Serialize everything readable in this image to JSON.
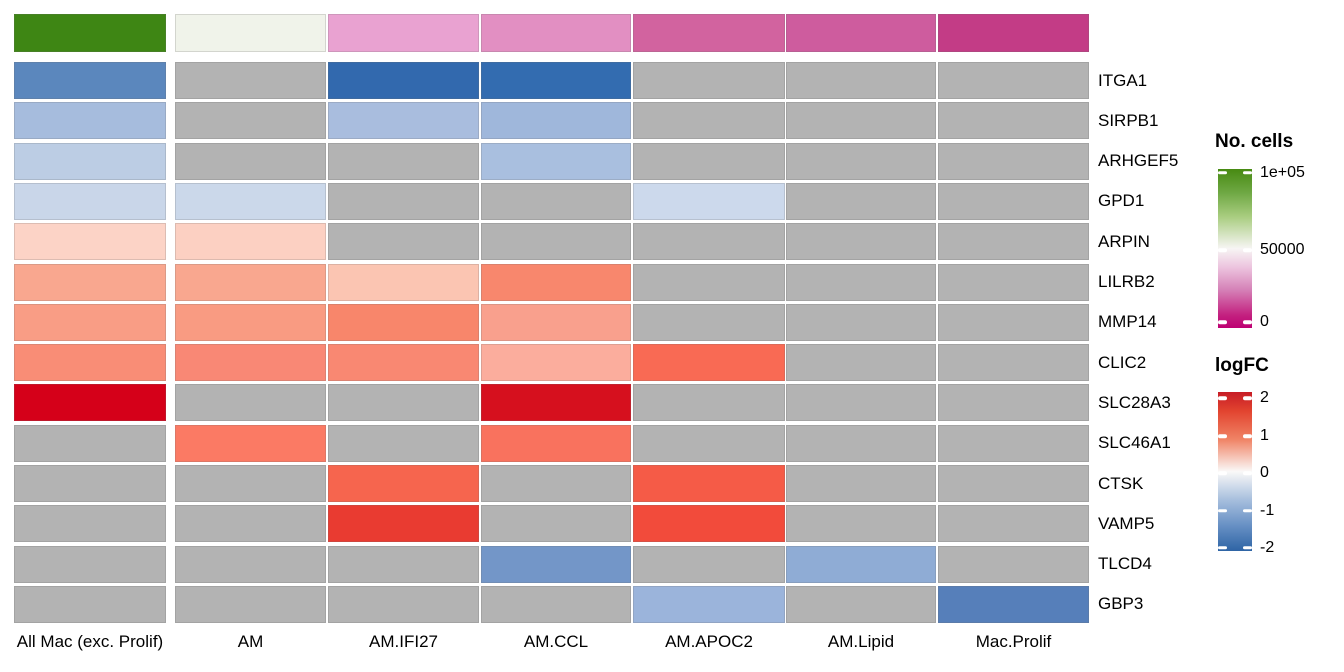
{
  "figure": {
    "background": "#ffffff"
  },
  "chart_data": {
    "type": "heatmap",
    "title": "",
    "columns": [
      "All Mac (exc. Prolif)",
      "AM",
      "AM.IFI27",
      "AM.CCL",
      "AM.APOC2",
      "AM.Lipid",
      "Mac.Prolif"
    ],
    "rows": [
      "ITGA1",
      "SIRPB1",
      "ARHGEF5",
      "GPD1",
      "ARPIN",
      "LILRB2",
      "MMP14",
      "CLIC2",
      "SLC28A3",
      "SLC46A1",
      "CTSK",
      "VAMP5",
      "TLCD4",
      "GBP3"
    ],
    "na_color": "#B3B3B3",
    "annotation": {
      "label": "No. cells",
      "colors": [
        "#3E8614",
        "#F0F3EA",
        "#E9A2D1",
        "#E28FC2",
        "#D2639F",
        "#CE5C9E",
        "#C33C86"
      ],
      "approx_values": [
        97000,
        52000,
        36000,
        33000,
        26000,
        25000,
        19000
      ]
    },
    "cells": {
      "colors": [
        [
          "#5B87BD",
          null,
          "#3269AE",
          "#336CB0",
          null,
          null,
          null
        ],
        [
          "#A6BCDD",
          null,
          "#A9BDDE",
          "#9FB7DB",
          null,
          null,
          null
        ],
        [
          "#BCCDE4",
          null,
          null,
          "#A9BFDF",
          null,
          null,
          null
        ],
        [
          "#C9D6E9",
          "#CBD8EA",
          null,
          null,
          "#CCD9EC",
          null,
          null
        ],
        [
          "#FCD3C6",
          "#FCD0C2",
          null,
          null,
          null,
          null,
          null
        ],
        [
          "#F9A78F",
          "#F9A78F",
          "#FBC5B2",
          "#F8876D",
          null,
          null,
          null
        ],
        [
          "#F99D85",
          "#F99B82",
          "#F8866B",
          "#F9A08D",
          null,
          null,
          null
        ],
        [
          "#F98D76",
          "#F98875",
          "#F98872",
          "#FBAD9D",
          "#F96A54",
          null,
          null
        ],
        [
          "#D50019",
          null,
          null,
          "#D6101E",
          null,
          null,
          null
        ],
        [
          null,
          "#FB7A64",
          null,
          "#F9725E",
          null,
          null,
          null
        ],
        [
          null,
          null,
          "#F6654E",
          null,
          "#F55B47",
          null,
          null
        ],
        [
          null,
          null,
          "#E93B31",
          null,
          "#F24B3B",
          null,
          null
        ],
        [
          null,
          null,
          null,
          "#7396C8",
          null,
          "#8FACD5",
          null
        ],
        [
          null,
          null,
          null,
          null,
          "#9BB4DB",
          null,
          "#567FBA"
        ]
      ],
      "logfc_estimates": [
        [
          -1.6,
          null,
          -2.1,
          -2.1,
          null,
          null,
          null
        ],
        [
          -0.85,
          null,
          -0.85,
          -0.95,
          null,
          null,
          null
        ],
        [
          -0.65,
          null,
          null,
          -0.8,
          null,
          null,
          null
        ],
        [
          -0.5,
          -0.5,
          null,
          null,
          -0.45,
          null,
          null
        ],
        [
          0.4,
          0.45,
          null,
          null,
          null,
          null,
          null
        ],
        [
          0.9,
          0.9,
          0.55,
          1.2,
          null,
          null,
          null
        ],
        [
          1.0,
          1.0,
          1.25,
          0.95,
          null,
          null,
          null
        ],
        [
          1.15,
          1.2,
          1.2,
          0.85,
          1.45,
          null,
          null
        ],
        [
          2.3,
          null,
          null,
          2.3,
          null,
          null,
          null
        ],
        [
          null,
          1.3,
          null,
          1.4,
          null,
          null,
          null
        ],
        [
          null,
          null,
          1.5,
          null,
          1.55,
          null,
          null
        ],
        [
          null,
          null,
          1.85,
          null,
          1.7,
          null,
          null
        ],
        [
          null,
          null,
          null,
          -1.35,
          null,
          -1.1,
          null
        ],
        [
          null,
          null,
          null,
          null,
          -0.95,
          null,
          -1.6
        ]
      ]
    },
    "legends": [
      {
        "title": "No. cells",
        "ticks": [
          "1e+05",
          "50000",
          "0"
        ],
        "gradient_top": "#478A12",
        "gradient_mid": "#F7F5F4",
        "gradient_bottom": "#BE0073"
      },
      {
        "title": "logFC",
        "ticks": [
          "2",
          "1",
          "0",
          "-1",
          "-2"
        ],
        "gradient_top": "#C71D26",
        "gradient_mid": "#FAF9F8",
        "gradient_bottom": "#2E64A5"
      }
    ],
    "layout_hints": {
      "legend_position": "right",
      "grid": "off",
      "na_cells_shown_gray": true
    }
  }
}
